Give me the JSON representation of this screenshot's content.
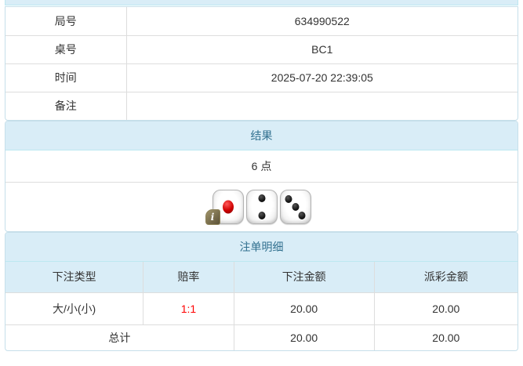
{
  "colors": {
    "heading_bg": "#d9edf7",
    "heading_text": "#31708f",
    "panel_border": "#bce8f1",
    "cell_border": "#dddddd",
    "body_text": "#333333",
    "odds_red": "#ff0000"
  },
  "info_table": {
    "rows": [
      {
        "label": "局号",
        "value": "634990522"
      },
      {
        "label": "桌号",
        "value": "BC1"
      },
      {
        "label": "时间",
        "value": "2025-07-20 22:39:05"
      },
      {
        "label": "备注",
        "value": ""
      }
    ]
  },
  "result_panel": {
    "title": "结果",
    "points": "6 点",
    "dice": [
      {
        "value": 1,
        "pip_color": "red"
      },
      {
        "value": 2,
        "pip_color": "black"
      },
      {
        "value": 3,
        "pip_color": "black"
      }
    ],
    "info_icon": "i"
  },
  "bets_panel": {
    "title": "注单明细",
    "columns": [
      "下注类型",
      "赔率",
      "下注金额",
      "派彩金额"
    ],
    "rows": [
      {
        "type": "大/小(小)",
        "odds": "1:1",
        "bet": "20.00",
        "payout": "20.00"
      }
    ],
    "total": {
      "label": "总计",
      "bet": "20.00",
      "payout": "20.00"
    }
  }
}
